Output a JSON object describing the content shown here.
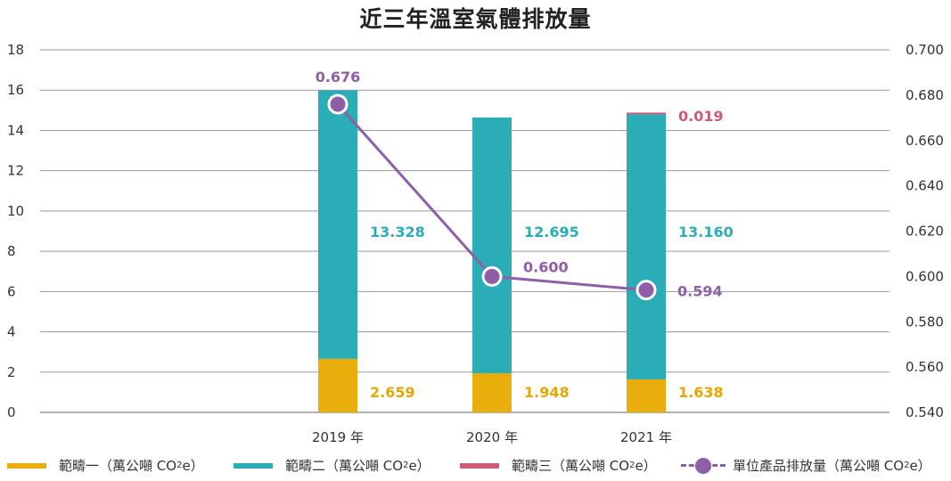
{
  "chart_data": {
    "type": "bar",
    "title": "近三年溫室氣體排放量",
    "categories": [
      "2019 年",
      "2020 年",
      "2021 年"
    ],
    "stacked": true,
    "series": [
      {
        "name": "範疇一（萬公噸 CO",
        "values": [
          2.659,
          1.948,
          1.638
        ],
        "color": "#e9ae0b"
      },
      {
        "name": "範疇二（萬公噸 CO",
        "values": [
          13.328,
          12.695,
          13.16
        ],
        "color": "#2aadb7"
      },
      {
        "name": "範疇三（萬公噸 CO",
        "values": [
          null,
          null,
          0.019
        ],
        "color": "#cd5b76"
      }
    ],
    "line_series": {
      "name": "單位產品排放量（萬公噸 CO",
      "values": [
        0.676,
        0.6,
        0.594
      ],
      "color": "#8e5fa8",
      "axis": "right"
    },
    "value_labels": {
      "scope1": [
        "2.659",
        "1.948",
        "1.638"
      ],
      "scope2": [
        "13.328",
        "12.695",
        "13.160"
      ],
      "scope3": [
        "0.019"
      ],
      "intensity": [
        "0.676",
        "0.600",
        "0.594"
      ]
    },
    "ylim_left": [
      0,
      18
    ],
    "yticks_left": [
      "0",
      "2",
      "4",
      "6",
      "8",
      "10",
      "12",
      "14",
      "16",
      "18"
    ],
    "ylim_right": [
      0.54,
      0.7
    ],
    "yticks_right": [
      "0.540",
      "0.560",
      "0.580",
      "0.600",
      "0.620",
      "0.640",
      "0.660",
      "0.680",
      "0.700"
    ],
    "grid": true,
    "legend_position": "bottom"
  },
  "legend": {
    "unit_sub": "2",
    "unit_tail": "e）"
  }
}
